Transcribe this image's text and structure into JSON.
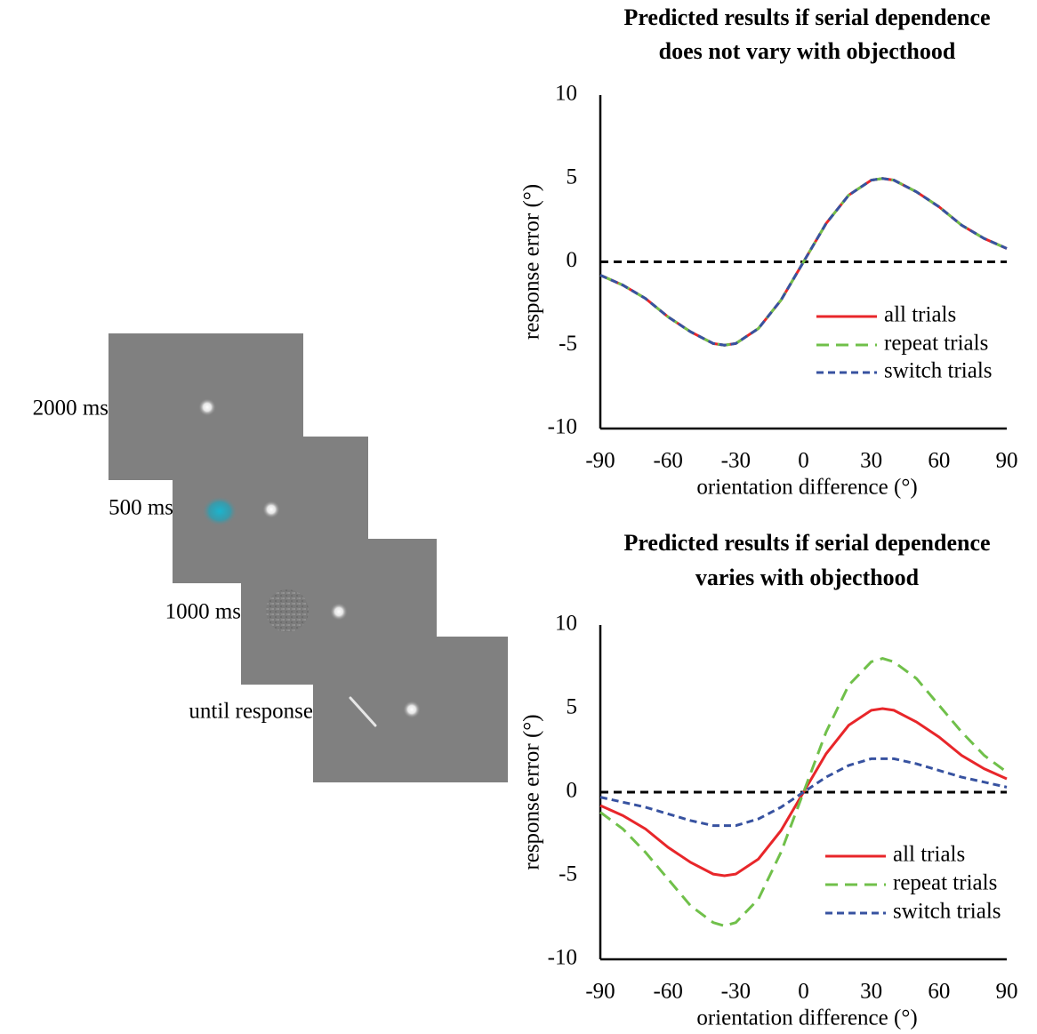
{
  "trial_sequence": {
    "labels": [
      "2000 ms",
      "500 ms",
      "1000 ms",
      "until response"
    ]
  },
  "chart_data": [
    {
      "type": "line",
      "title": [
        "Predicted results if serial dependence",
        "does not vary with objecthood"
      ],
      "x_label": "orientation difference (°)",
      "y_label": "response error (°)",
      "x": [
        -90,
        -80,
        -70,
        -60,
        -50,
        -40,
        -35,
        -30,
        -20,
        -10,
        0,
        10,
        20,
        30,
        35,
        40,
        50,
        60,
        70,
        80,
        90
      ],
      "series": [
        {
          "name": "all trials",
          "color": "#e8262a",
          "values": [
            -0.8,
            -1.4,
            -2.2,
            -3.3,
            -4.2,
            -4.9,
            -5,
            -4.9,
            -4,
            -2.3,
            0,
            2.3,
            4,
            4.9,
            5,
            4.9,
            4.2,
            3.3,
            2.2,
            1.4,
            0.8
          ]
        },
        {
          "name": "repeat trials",
          "color": "#70c04a",
          "values": [
            -0.8,
            -1.4,
            -2.2,
            -3.3,
            -4.2,
            -4.9,
            -5,
            -4.9,
            -4,
            -2.3,
            0,
            2.3,
            4,
            4.9,
            5,
            4.9,
            4.2,
            3.3,
            2.2,
            1.4,
            0.8
          ]
        },
        {
          "name": "switch trials",
          "color": "#3752a0",
          "values": [
            -0.8,
            -1.4,
            -2.2,
            -3.3,
            -4.2,
            -4.9,
            -5,
            -4.9,
            -4,
            -2.3,
            0,
            2.3,
            4,
            4.9,
            5,
            4.9,
            4.2,
            3.3,
            2.2,
            1.4,
            0.8
          ]
        }
      ],
      "hline": 0,
      "xlim": [
        -90,
        90
      ],
      "ylim": [
        -10,
        10
      ],
      "xticks": [
        -90,
        -60,
        -30,
        0,
        30,
        60,
        90
      ],
      "yticks": [
        -10,
        -5,
        0,
        5,
        10
      ],
      "grid": false,
      "legend": "lower right"
    },
    {
      "type": "line",
      "title": [
        "Predicted results if serial dependence",
        "varies with objecthood"
      ],
      "x_label": "orientation difference (°)",
      "y_label": "response error (°)",
      "x": [
        -90,
        -80,
        -70,
        -60,
        -50,
        -40,
        -35,
        -30,
        -20,
        -10,
        0,
        10,
        20,
        30,
        35,
        40,
        50,
        60,
        70,
        80,
        90
      ],
      "series": [
        {
          "name": "all trials",
          "color": "#e8262a",
          "values": [
            -0.8,
            -1.4,
            -2.2,
            -3.3,
            -4.2,
            -4.9,
            -5,
            -4.9,
            -4,
            -2.3,
            0,
            2.3,
            4,
            4.9,
            5,
            4.9,
            4.2,
            3.3,
            2.2,
            1.4,
            0.8
          ]
        },
        {
          "name": "repeat trials",
          "color": "#70c04a",
          "values": [
            -1.2,
            -2.2,
            -3.6,
            -5.2,
            -6.8,
            -7.8,
            -8,
            -7.8,
            -6.4,
            -3.6,
            0,
            3.6,
            6.4,
            7.8,
            8,
            7.8,
            6.8,
            5.2,
            3.6,
            2.2,
            1.2
          ]
        },
        {
          "name": "switch trials",
          "color": "#3752a0",
          "values": [
            -0.3,
            -0.6,
            -0.9,
            -1.3,
            -1.7,
            -2,
            -2,
            -2,
            -1.6,
            -0.9,
            0,
            0.9,
            1.6,
            2,
            2,
            2,
            1.7,
            1.3,
            0.9,
            0.6,
            0.3
          ]
        }
      ],
      "hline": 0,
      "xlim": [
        -90,
        90
      ],
      "ylim": [
        -10,
        10
      ],
      "xticks": [
        -90,
        -60,
        -30,
        0,
        30,
        60,
        90
      ],
      "yticks": [
        -10,
        -5,
        0,
        5,
        10
      ],
      "grid": false,
      "legend": "lower right"
    }
  ]
}
